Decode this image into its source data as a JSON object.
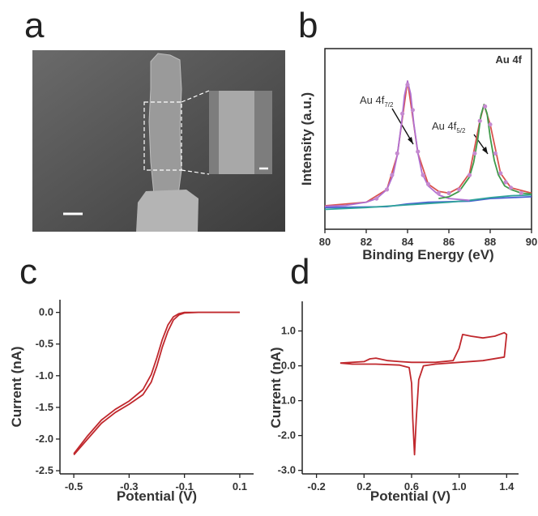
{
  "panel_labels": [
    "a",
    "b",
    "c",
    "d"
  ],
  "chart_data": [
    {
      "type": "line",
      "xlabel": "Binding Energy (eV)",
      "ylabel": "Intensity (a.u.)",
      "annotation": "Au 4f",
      "peak_labels": [
        {
          "text": "Au 4f",
          "sub": "7/2"
        },
        {
          "text": "Au 4f",
          "sub": "5/2"
        }
      ],
      "xlim": [
        80,
        90
      ],
      "xticks": [
        80,
        82,
        84,
        86,
        88,
        90
      ],
      "ylim": [
        0,
        1
      ],
      "series": [
        {
          "color": "#4a5fd1",
          "x": [
            80,
            83,
            84,
            85,
            87,
            88,
            90
          ],
          "values": [
            0.12,
            0.125,
            0.14,
            0.15,
            0.155,
            0.17,
            0.18
          ]
        },
        {
          "color": "#2fa39a",
          "x": [
            80,
            82,
            84,
            86,
            87,
            88,
            89,
            90
          ],
          "values": [
            0.11,
            0.12,
            0.135,
            0.15,
            0.16,
            0.175,
            0.185,
            0.19
          ]
        },
        {
          "color": "#d9534f",
          "x": [
            80,
            82,
            83,
            83.5,
            84,
            84.5,
            85,
            85.5,
            86,
            86.5,
            87,
            87.5,
            87.7,
            88,
            88.5,
            89,
            90
          ],
          "values": [
            0.13,
            0.15,
            0.22,
            0.41,
            0.82,
            0.42,
            0.25,
            0.21,
            0.2,
            0.23,
            0.31,
            0.6,
            0.69,
            0.58,
            0.31,
            0.23,
            0.2
          ]
        },
        {
          "color": "#b06fd0",
          "x": [
            80,
            81,
            82,
            82.5,
            83,
            83.3,
            83.5,
            83.7,
            83.85,
            84,
            84.15,
            84.3,
            84.5,
            84.7,
            85,
            85.5,
            86,
            87
          ],
          "values": [
            0.127,
            0.132,
            0.15,
            0.17,
            0.22,
            0.3,
            0.41,
            0.58,
            0.74,
            0.82,
            0.75,
            0.59,
            0.42,
            0.31,
            0.24,
            0.19,
            0.17,
            0.16
          ]
        },
        {
          "color": "#3f9a4a",
          "x": [
            85.5,
            86,
            86.5,
            87,
            87.2,
            87.4,
            87.55,
            87.7,
            87.85,
            88,
            88.2,
            88.4,
            88.7,
            89,
            89.5,
            90
          ],
          "values": [
            0.17,
            0.18,
            0.21,
            0.29,
            0.37,
            0.5,
            0.63,
            0.69,
            0.64,
            0.51,
            0.38,
            0.3,
            0.24,
            0.22,
            0.2,
            0.195
          ]
        },
        {
          "mode": "markers",
          "color": "#c58ad0",
          "x": [
            82.5,
            83,
            83.25,
            83.5,
            83.75,
            84,
            84.25,
            84.5,
            84.75,
            85,
            85.5,
            86,
            86.5,
            87,
            87.25,
            87.5,
            87.75,
            88,
            88.25,
            88.5,
            88.75,
            89,
            89.5
          ],
          "values": [
            0.17,
            0.22,
            0.3,
            0.42,
            0.64,
            0.8,
            0.66,
            0.43,
            0.3,
            0.25,
            0.2,
            0.2,
            0.22,
            0.3,
            0.42,
            0.6,
            0.68,
            0.58,
            0.42,
            0.31,
            0.26,
            0.23,
            0.2
          ]
        }
      ]
    },
    {
      "type": "line",
      "xlabel": "Potential (V)",
      "ylabel": "Current (nA)",
      "xlim": [
        -0.55,
        0.15
      ],
      "xticks": [
        -0.5,
        -0.3,
        -0.1,
        0.1
      ],
      "ylim": [
        -2.55,
        0.2
      ],
      "yticks": [
        {
          "value": 0,
          "label": "0.0"
        },
        -0.5,
        {
          "value": -1,
          "label": "-1.0"
        },
        -1.5,
        {
          "value": -2,
          "label": "-2.0"
        },
        -2.5
      ],
      "series": [
        {
          "color": "#c0282d",
          "x": [
            -0.5,
            -0.45,
            -0.4,
            -0.35,
            -0.3,
            -0.25,
            -0.22,
            -0.2,
            -0.18,
            -0.16,
            -0.14,
            -0.12,
            -0.1,
            -0.05,
            0,
            0.05,
            0.1
          ],
          "values": [
            -2.25,
            -2.0,
            -1.75,
            -1.58,
            -1.45,
            -1.3,
            -1.1,
            -0.85,
            -0.55,
            -0.3,
            -0.12,
            -0.04,
            -0.01,
            0,
            0,
            0,
            0
          ]
        },
        {
          "color": "#c0282d",
          "x": [
            -0.5,
            -0.45,
            -0.4,
            -0.35,
            -0.3,
            -0.25,
            -0.22,
            -0.2,
            -0.18,
            -0.16,
            -0.14,
            -0.12,
            -0.1,
            -0.05,
            0,
            0.05,
            0.1
          ],
          "values": [
            -2.23,
            -1.95,
            -1.7,
            -1.53,
            -1.4,
            -1.22,
            -0.98,
            -0.72,
            -0.43,
            -0.2,
            -0.07,
            -0.02,
            0,
            0,
            0,
            0,
            0
          ]
        }
      ]
    },
    {
      "type": "line",
      "xlabel": "Potential (V)",
      "ylabel": "Current (nA)",
      "xlim": [
        -0.32,
        1.5
      ],
      "xticks": [
        -0.2,
        0.2,
        0.6,
        {
          "value": 1,
          "label": "1.0"
        },
        1.4
      ],
      "ylim": [
        -3.1,
        1.85
      ],
      "yticks": [
        {
          "value": 1,
          "label": "1.0"
        },
        {
          "value": 0,
          "label": "0.0"
        },
        {
          "value": -1,
          "label": "-1.0"
        },
        {
          "value": -2,
          "label": "-2.0"
        },
        {
          "value": -3,
          "label": "-3.0"
        }
      ],
      "series": [
        {
          "color": "#c0282d",
          "x": [
            0,
            0.2,
            0.25,
            0.3,
            0.4,
            0.5,
            0.6,
            0.8,
            0.95,
            1,
            1.03,
            1.1,
            1.2,
            1.3,
            1.38,
            1.4,
            1.38,
            1.2,
            1,
            0.8,
            0.7,
            0.66,
            0.64,
            0.625,
            0.61,
            0.6,
            0.58,
            0.5,
            0.3,
            0.1,
            0
          ],
          "values": [
            0.08,
            0.12,
            0.2,
            0.22,
            0.15,
            0.12,
            0.1,
            0.1,
            0.15,
            0.5,
            0.9,
            0.85,
            0.8,
            0.85,
            0.95,
            0.9,
            0.25,
            0.15,
            0.1,
            0.05,
            0,
            -0.4,
            -1.5,
            -2.55,
            -1.5,
            -0.5,
            -0.05,
            0.02,
            0.05,
            0.05,
            0.08
          ]
        }
      ]
    }
  ]
}
